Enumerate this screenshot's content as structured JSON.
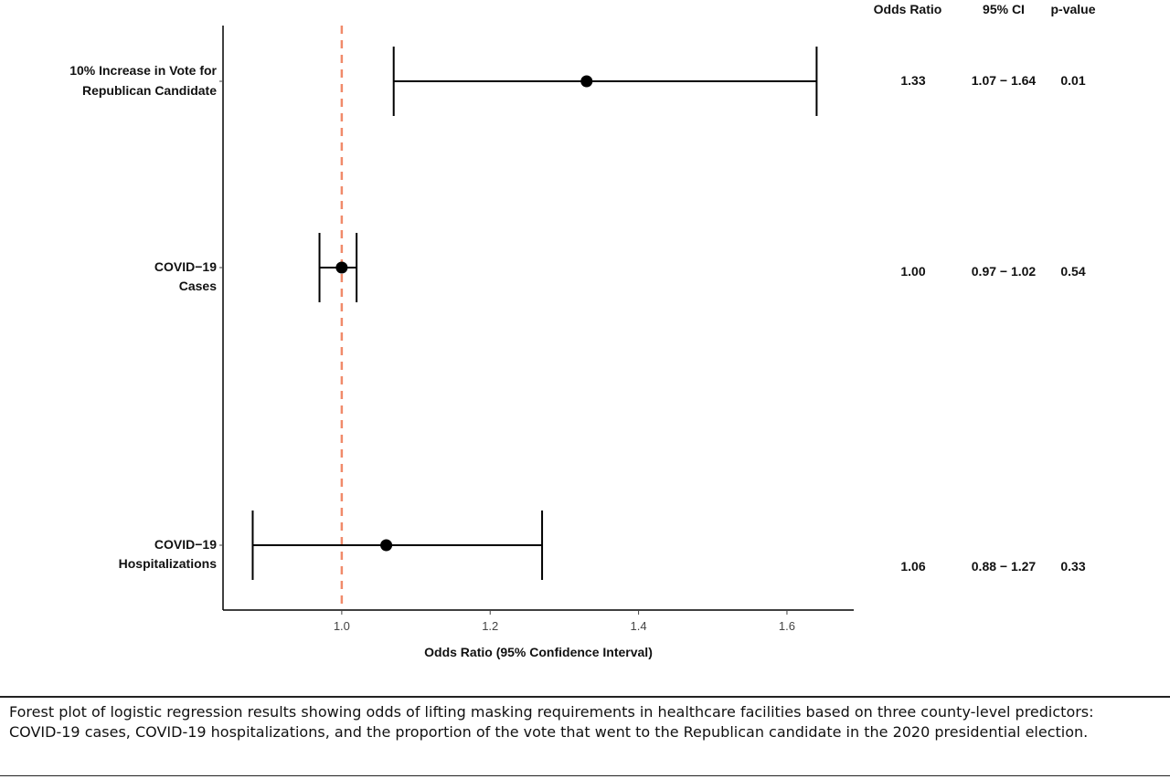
{
  "chart_data": {
    "type": "forest",
    "xlabel": "Odds Ratio (95% Confidence Interval)",
    "xlim": [
      0.84,
      1.69
    ],
    "xticks": [
      1.0,
      1.2,
      1.4,
      1.6
    ],
    "xtick_labels": [
      "1.0",
      "1.2",
      "1.4",
      "1.6"
    ],
    "reference_line": 1.0,
    "table_headers": [
      "Odds Ratio",
      "95% CI",
      "p-value"
    ],
    "rows": [
      {
        "label_lines": [
          "10% Increase in Vote for",
          "Republican Candidate"
        ],
        "or": 1.33,
        "lo": 1.07,
        "hi": 1.64,
        "or_text": "1.33",
        "ci_text": "1.07 − 1.64",
        "p_text": "0.01"
      },
      {
        "label_lines": [
          "COVID−19",
          "Cases"
        ],
        "or": 1.0,
        "lo": 0.97,
        "hi": 1.02,
        "or_text": "1.00",
        "ci_text": "0.97 − 1.02",
        "p_text": "0.54"
      },
      {
        "label_lines": [
          "COVID−19",
          "Hospitalizations"
        ],
        "or": 1.06,
        "lo": 0.88,
        "hi": 1.27,
        "or_text": "1.06",
        "ci_text": "0.88 − 1.27",
        "p_text": "0.33"
      }
    ],
    "colors": {
      "reference": "#f08a6a",
      "marker": "#000000",
      "axis": "#000000"
    }
  },
  "caption": "Forest plot of logistic regression results showing odds of lifting masking requirements in healthcare facilities based on three county-level predictors: COVID-19 cases, COVID-19 hospitalizations, and the proportion of the vote that went to the Republican candidate in the 2020 presidential election."
}
